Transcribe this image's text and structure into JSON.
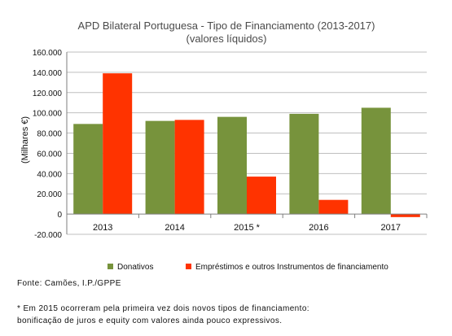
{
  "chart_data": {
    "type": "bar",
    "title": "APD Bilateral Portuguesa - Tipo de Financiamento (2013-2017)",
    "subtitle": "(valores líquidos)",
    "ylabel": "(Milhares €)",
    "xlabel": "",
    "categories": [
      "2013",
      "2014",
      "2015 *",
      "2016",
      "2017"
    ],
    "ylim": [
      -20000,
      160000
    ],
    "yticks": [
      "-20.000",
      "0",
      "20.000",
      "40.000",
      "60.000",
      "80.000",
      "100.000",
      "120.000",
      "140.000",
      "160.000"
    ],
    "ytick_values": [
      -20000,
      0,
      20000,
      40000,
      60000,
      80000,
      100000,
      120000,
      140000,
      160000
    ],
    "grid": true,
    "legend_position": "bottom",
    "series": [
      {
        "name": "Donativos",
        "color": "#77933c",
        "values": [
          89000,
          92000,
          96000,
          99000,
          105000
        ]
      },
      {
        "name": "Empréstimos e outros Instrumentos de financiamento",
        "color": "#ff3300",
        "values": [
          139000,
          93000,
          37000,
          14000,
          -3000
        ]
      }
    ]
  },
  "notes": {
    "source": "Fonte: Camões, I.P./GPPE",
    "footnote_line1": "* Em 2015 ocorreram pela primeira vez dois novos tipos de financiamento:",
    "footnote_line2": "bonificação de juros e equity com valores ainda pouco expressivos."
  }
}
